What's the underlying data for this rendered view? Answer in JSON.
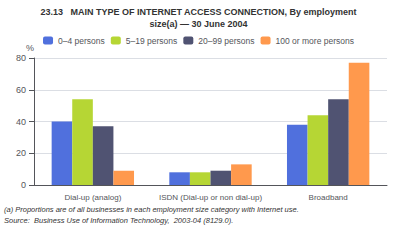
{
  "chart_data": {
    "type": "bar",
    "title": "23.13   MAIN TYPE OF INTERNET ACCESS CONNECTION, By employment",
    "subtitle": "size(a) — 30 June 2004",
    "ylabel": "%",
    "categories": [
      "Dial-up (analog)",
      "ISDN (Dial-up or non dial-up)",
      "Broadband"
    ],
    "series": [
      {
        "name": "0–4 persons",
        "values": [
          40,
          8,
          38
        ]
      },
      {
        "name": "5–19 persons",
        "values": [
          54,
          8,
          44
        ]
      },
      {
        "name": "20–99 persons",
        "values": [
          37,
          9,
          54
        ]
      },
      {
        "name": "100 or more persons",
        "values": [
          9,
          13,
          77
        ]
      }
    ],
    "ylim": [
      0,
      80
    ],
    "yticks": [
      0,
      20,
      40,
      60,
      80
    ],
    "grid": true,
    "legend": "top",
    "annotations": [
      "(a) Proportions are of all businesses in each employment size category with Internet use.",
      "Source:  Business Use of Information Technology,  2003-04 (8129.0)."
    ]
  }
}
